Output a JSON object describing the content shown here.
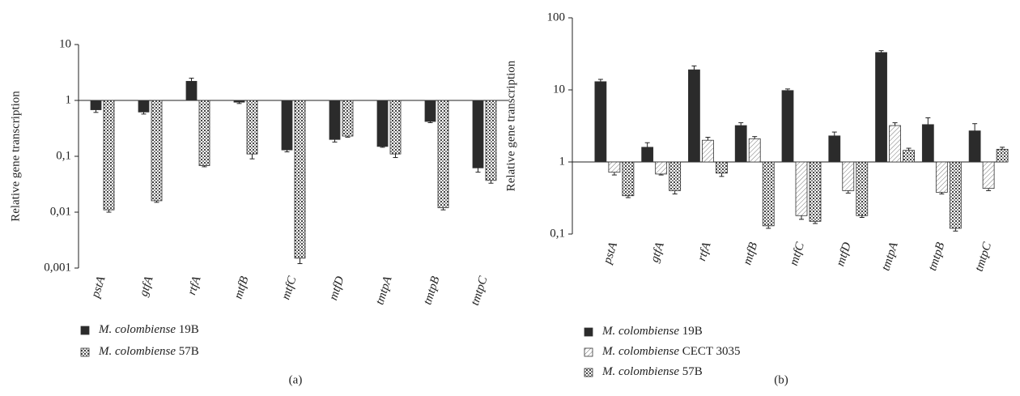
{
  "chart_data": [
    {
      "type": "bar",
      "log_scale": true,
      "panel_label": "(a)",
      "y_label": "Relative gene transcription",
      "categories": [
        "pstA",
        "gtfA",
        "rtfA",
        "mtfB",
        "mtfC",
        "mtfD",
        "tmtpA",
        "tmtpB",
        "tmtpC"
      ],
      "ylim": [
        0.001,
        10
      ],
      "yticks": [
        {
          "value": 0.001,
          "label": "0,001"
        },
        {
          "value": 0.01,
          "label": "0,01"
        },
        {
          "value": 0.1,
          "label": "0,1"
        },
        1,
        10
      ],
      "series": [
        {
          "name": "M. colombiense 19B",
          "color": "#2b2b2b",
          "pattern": "solid",
          "values": [
            0.68,
            0.62,
            2.2,
            0.93,
            0.13,
            0.2,
            0.15,
            0.42,
            0.062
          ],
          "errors": [
            0.07,
            0.05,
            0.3,
            0.05,
            0.01,
            0.02,
            0.005,
            0.02,
            0.01
          ]
        },
        {
          "name": "M. colombiense 57B",
          "color": "#444444",
          "pattern": "checker",
          "values": [
            0.011,
            0.016,
            0.068,
            0.11,
            0.0015,
            0.23,
            0.11,
            0.012,
            0.037
          ],
          "errors": [
            0.001,
            0.001,
            0.003,
            0.02,
            0.0003,
            0.01,
            0.015,
            0.001,
            0.004
          ]
        }
      ]
    },
    {
      "type": "bar",
      "log_scale": true,
      "panel_label": "(b)",
      "y_label": "Relative gene transcription",
      "categories": [
        "pstA",
        "gtfA",
        "rtfA",
        "mtfB",
        "mtfC",
        "mtfD",
        "tmtpA",
        "tmtpB",
        "tmtpC"
      ],
      "ylim": [
        0.1,
        100
      ],
      "yticks": [
        {
          "value": 0.1,
          "label": "0,1"
        },
        1,
        10,
        100
      ],
      "series": [
        {
          "name": "M. colombiense 19B",
          "color": "#2b2b2b",
          "pattern": "solid",
          "values": [
            13,
            1.6,
            19,
            3.2,
            9.8,
            2.3,
            33,
            3.3,
            2.7
          ],
          "errors": [
            1,
            0.25,
            2.5,
            0.3,
            0.5,
            0.3,
            2,
            0.8,
            0.7
          ]
        },
        {
          "name": "M. colombiense CECT 3035",
          "color": "#555555",
          "pattern": "hatch",
          "values": [
            0.72,
            0.68,
            2.0,
            2.1,
            0.18,
            0.4,
            3.2,
            0.38,
            0.43
          ],
          "errors": [
            0.06,
            0.02,
            0.2,
            0.15,
            0.02,
            0.03,
            0.3,
            0.02,
            0.03
          ]
        },
        {
          "name": "M. colombiense 57B",
          "color": "#444444",
          "pattern": "checker",
          "values": [
            0.34,
            0.4,
            0.7,
            0.13,
            0.15,
            0.18,
            1.45,
            0.12,
            1.5
          ],
          "errors": [
            0.02,
            0.04,
            0.07,
            0.01,
            0.01,
            0.01,
            0.1,
            0.01,
            0.1
          ]
        }
      ]
    }
  ]
}
